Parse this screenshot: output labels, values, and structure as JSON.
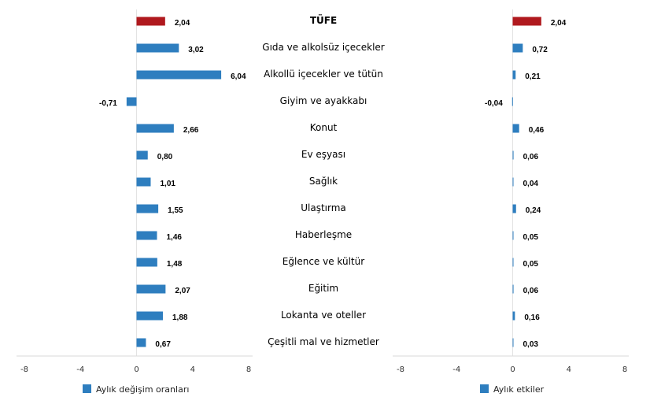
{
  "chart_data": [
    {
      "type": "bar",
      "orientation": "horizontal",
      "categories": [
        "TÜFE",
        "Gıda ve alkolsüz içecekler",
        "Alkollü içecekler ve tütün",
        "Giyim ve ayakkabı",
        "Konut",
        "Ev eşyası",
        "Sağlık",
        "Ulaştırma",
        "Haberleşme",
        "Eğlence ve kültür",
        "Eğitim",
        "Lokanta ve oteller",
        "Çeşitli mal ve hizmetler"
      ],
      "values": [
        2.04,
        3.02,
        6.04,
        -0.71,
        2.66,
        0.8,
        1.01,
        1.55,
        1.46,
        1.48,
        2.07,
        1.88,
        0.67
      ],
      "labels": [
        "2,04",
        "3,02",
        "6,04",
        "-0,71",
        "2,66",
        "0,80",
        "1,01",
        "1,55",
        "1,46",
        "1,48",
        "2,07",
        "1,88",
        "0,67"
      ],
      "series_name": "Aylık değişim oranları",
      "xlim": [
        -8,
        8
      ],
      "ticks": [
        "-8",
        "-4",
        "0",
        "4",
        "8"
      ],
      "tick_values": [
        -8,
        -4,
        0,
        4,
        8
      ],
      "legend": "bottom",
      "grid": false,
      "colors": {
        "bar": "#2e7ebf",
        "highlight": "#b0191e"
      }
    },
    {
      "type": "bar",
      "orientation": "horizontal",
      "values": [
        2.04,
        0.72,
        0.21,
        -0.04,
        0.46,
        0.06,
        0.04,
        0.24,
        0.05,
        0.05,
        0.06,
        0.16,
        0.03
      ],
      "labels": [
        "2,04",
        "0,72",
        "0,21",
        "-0,04",
        "0,46",
        "0,06",
        "0,04",
        "0,24",
        "0,05",
        "0,05",
        "0,06",
        "0,16",
        "0,03"
      ],
      "series_name": "Aylık etkiler",
      "xlim": [
        -8,
        8
      ],
      "ticks": [
        "-8",
        "-4",
        "0",
        "4",
        "8"
      ],
      "tick_values": [
        -8,
        -4,
        0,
        4,
        8
      ],
      "legend": "bottom",
      "grid": false,
      "colors": {
        "bar": "#2e7ebf",
        "highlight": "#b0191e"
      }
    }
  ]
}
